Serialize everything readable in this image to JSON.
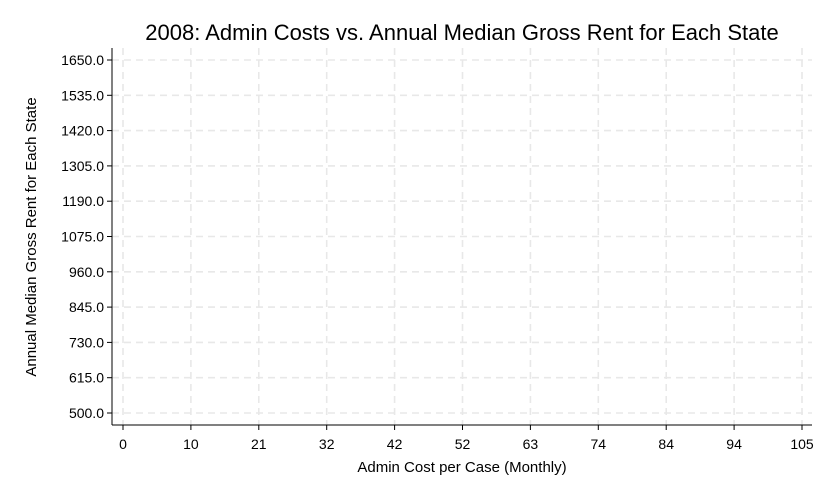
{
  "chart_data": {
    "type": "scatter",
    "title": "2008: Admin Costs vs. Annual Median Gross Rent for Each State",
    "xlabel": "Admin Cost per Case (Monthly)",
    "ylabel": "Annual Median Gross Rent for Each State",
    "x_ticks": [
      "0",
      "10",
      "21",
      "32",
      "42",
      "52",
      "63",
      "74",
      "84",
      "94",
      "105"
    ],
    "y_ticks": [
      "500.0",
      "615.0",
      "730.0",
      "845.0",
      "960.0",
      "1075.0",
      "1190.0",
      "1305.0",
      "1420.0",
      "1535.0",
      "1650.0"
    ],
    "xlim": [
      0,
      105
    ],
    "ylim": [
      500,
      1650
    ],
    "grid": true,
    "points": []
  }
}
